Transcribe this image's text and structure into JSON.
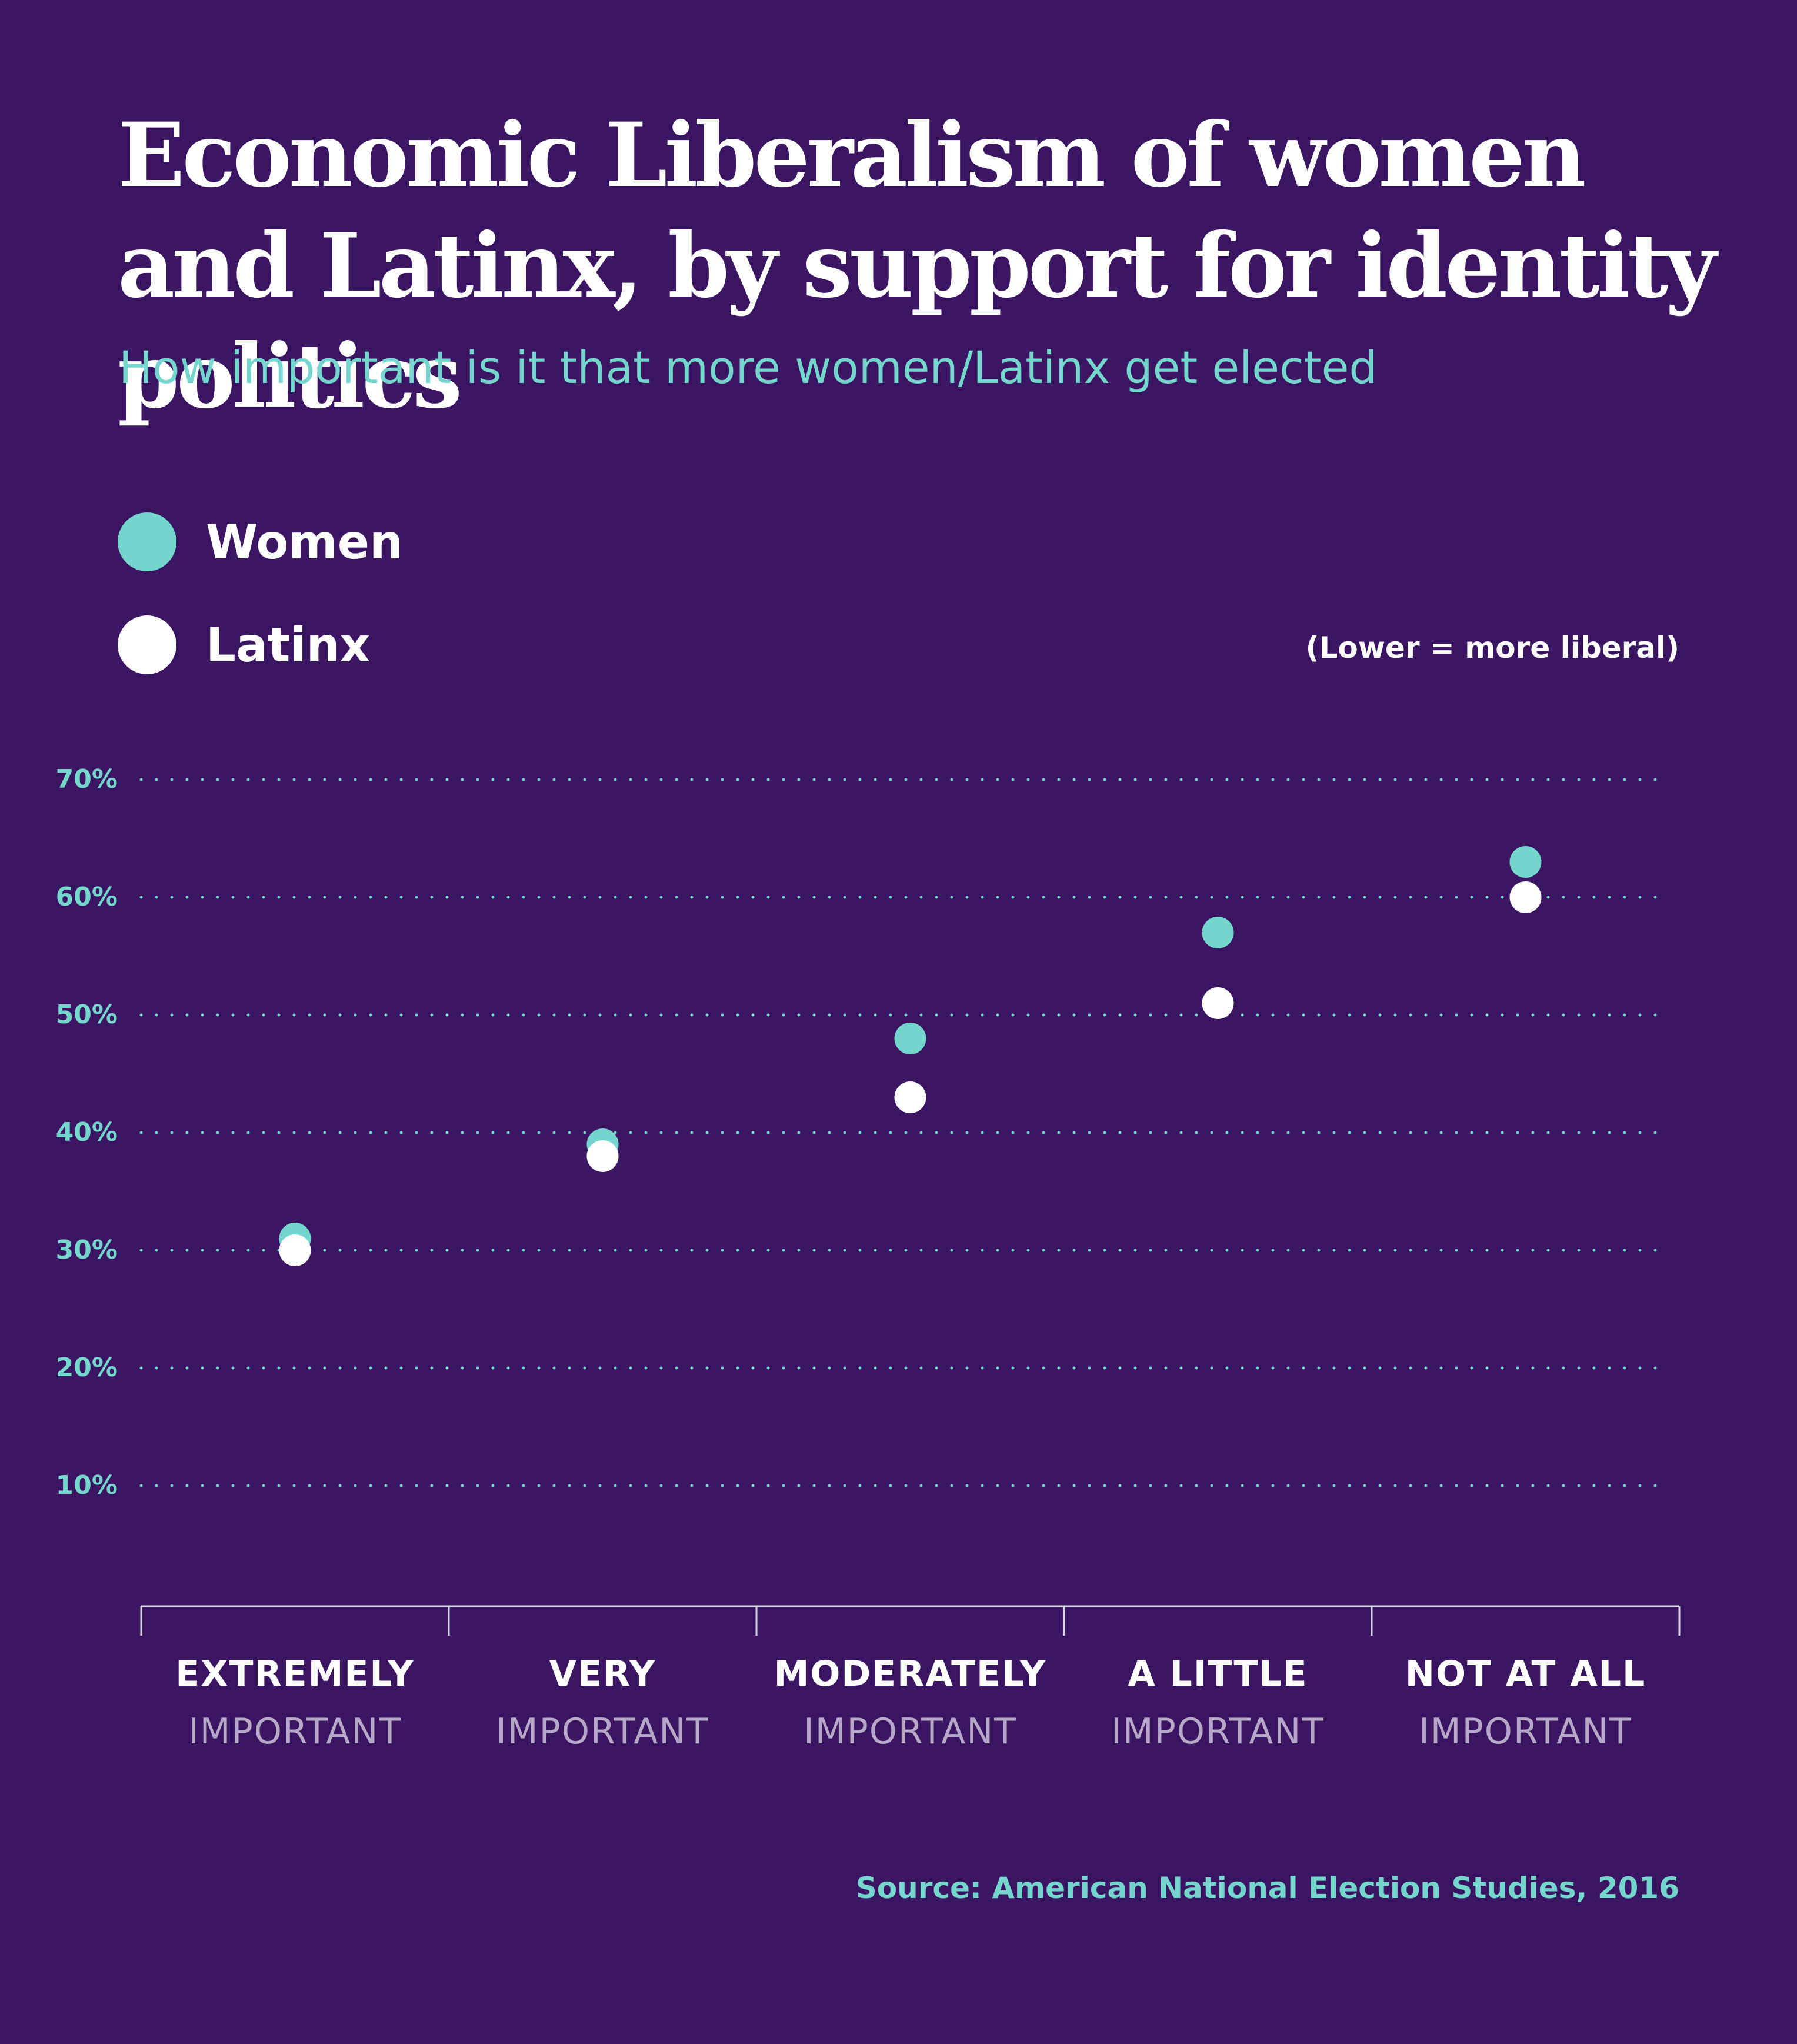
{
  "header": {
    "title": "Economic Liberalism of women and Latinx, by support for identity politics",
    "subtitle": "How important is it that more women/Latinx get elected"
  },
  "legend": {
    "women_label": "Women",
    "latinx_label": "Latinx",
    "note": "(Lower = more liberal)"
  },
  "footer": {
    "source": "Source: American National Election Studies, 2016"
  },
  "colors": {
    "background": "#3a1662",
    "women": "#74d6cd",
    "latinx": "#ffffff",
    "gridline": "#74d6cd",
    "axis": "#d9d2e3"
  },
  "chart_data": {
    "type": "scatter",
    "title": "Economic Liberalism of women and Latinx, by support for identity politics",
    "subtitle": "How important is it that more women/Latinx get elected",
    "categories": [
      {
        "line1": "EXTREMELY",
        "line2": "IMPORTANT"
      },
      {
        "line1": "VERY",
        "line2": "IMPORTANT"
      },
      {
        "line1": "MODERATELY",
        "line2": "IMPORTANT"
      },
      {
        "line1": "A LITTLE",
        "line2": "IMPORTANT"
      },
      {
        "line1": "NOT AT ALL",
        "line2": "IMPORTANT"
      }
    ],
    "series": [
      {
        "name": "Women",
        "color": "#74d6cd",
        "values": [
          31,
          39,
          48,
          57,
          63
        ]
      },
      {
        "name": "Latinx",
        "color": "#ffffff",
        "values": [
          30,
          38,
          43,
          51,
          60
        ]
      }
    ],
    "y_ticks": [
      10,
      20,
      30,
      40,
      50,
      60,
      70
    ],
    "y_tick_labels": [
      "10%",
      "20%",
      "30%",
      "40%",
      "50%",
      "60%",
      "70%"
    ],
    "ylim": [
      0,
      70
    ],
    "grid": true,
    "legend_position": "top-left",
    "xlabel": "",
    "ylabel": ""
  }
}
